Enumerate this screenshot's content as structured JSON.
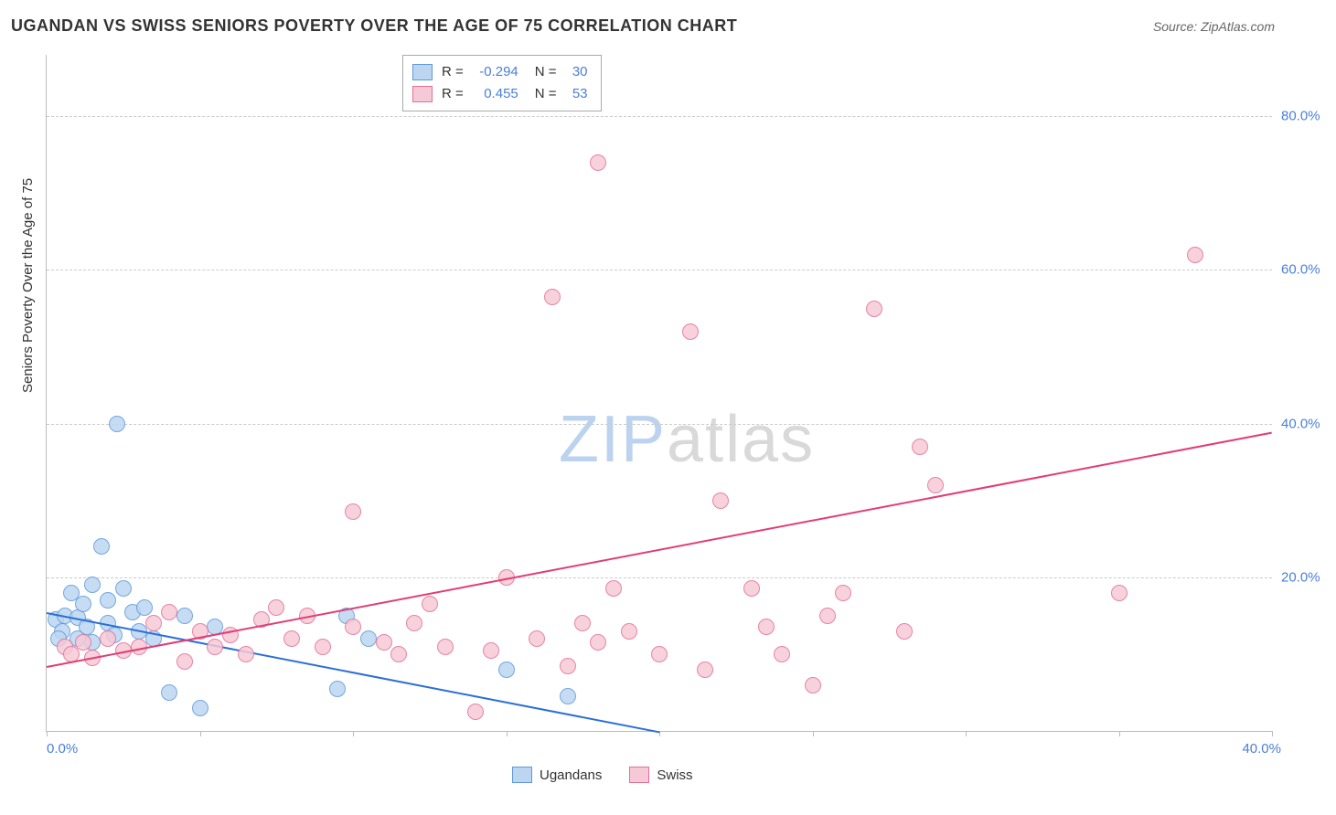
{
  "title": "UGANDAN VS SWISS SENIORS POVERTY OVER THE AGE OF 75 CORRELATION CHART",
  "source": "Source: ZipAtlas.com",
  "y_axis_title": "Seniors Poverty Over the Age of 75",
  "watermark": {
    "part1": "ZIP",
    "part2": "atlas"
  },
  "chart": {
    "type": "scatter",
    "background_color": "#ffffff",
    "grid_color": "#cccccc",
    "axis_color": "#bbbbbb",
    "tick_label_color": "#4a7fd8",
    "x": {
      "min": 0,
      "max": 40,
      "label_min": "0.0%",
      "label_max": "40.0%",
      "ticks": [
        0,
        5,
        10,
        15,
        20,
        25,
        30,
        35,
        40
      ]
    },
    "y": {
      "min": 0,
      "max": 88,
      "gridlines": [
        20,
        40,
        60,
        80
      ],
      "labels": [
        "20.0%",
        "40.0%",
        "60.0%",
        "80.0%"
      ]
    },
    "point_radius": 8,
    "series": [
      {
        "name": "Ugandans",
        "fill": "#bcd6f2",
        "stroke": "#5e98da",
        "r_value": "-0.294",
        "n_value": "30",
        "trend": {
          "x1": 0,
          "y1": 15.5,
          "x2": 20,
          "y2": 0,
          "color": "#2b6fd6"
        },
        "points": [
          [
            0.3,
            14.5
          ],
          [
            0.5,
            13.0
          ],
          [
            0.6,
            15.0
          ],
          [
            0.8,
            18.0
          ],
          [
            1.0,
            12.0
          ],
          [
            1.0,
            14.8
          ],
          [
            1.2,
            16.5
          ],
          [
            1.3,
            13.5
          ],
          [
            1.5,
            19.0
          ],
          [
            1.5,
            11.5
          ],
          [
            1.8,
            24.0
          ],
          [
            2.0,
            14.0
          ],
          [
            2.0,
            17.0
          ],
          [
            2.2,
            12.5
          ],
          [
            2.3,
            40.0
          ],
          [
            2.5,
            18.5
          ],
          [
            2.8,
            15.5
          ],
          [
            3.0,
            13.0
          ],
          [
            3.2,
            16.0
          ],
          [
            3.5,
            12.0
          ],
          [
            4.0,
            5.0
          ],
          [
            4.5,
            15.0
          ],
          [
            5.0,
            3.0
          ],
          [
            5.5,
            13.5
          ],
          [
            9.5,
            5.5
          ],
          [
            9.8,
            15.0
          ],
          [
            10.5,
            12.0
          ],
          [
            15.0,
            8.0
          ],
          [
            17.0,
            4.5
          ],
          [
            0.4,
            12.0
          ]
        ]
      },
      {
        "name": "Swiss",
        "fill": "#f6c9d6",
        "stroke": "#e36f96",
        "r_value": "0.455",
        "n_value": "53",
        "trend": {
          "x1": 0,
          "y1": 8.5,
          "x2": 40,
          "y2": 39,
          "color": "#e23d74"
        },
        "points": [
          [
            0.6,
            11.0
          ],
          [
            0.8,
            10.0
          ],
          [
            1.2,
            11.5
          ],
          [
            1.5,
            9.5
          ],
          [
            2.0,
            12.0
          ],
          [
            2.5,
            10.5
          ],
          [
            3.0,
            11.0
          ],
          [
            3.5,
            14.0
          ],
          [
            4.0,
            15.5
          ],
          [
            4.5,
            9.0
          ],
          [
            5.0,
            13.0
          ],
          [
            5.5,
            11.0
          ],
          [
            6.0,
            12.5
          ],
          [
            6.5,
            10.0
          ],
          [
            7.0,
            14.5
          ],
          [
            7.5,
            16.0
          ],
          [
            8.0,
            12.0
          ],
          [
            8.5,
            15.0
          ],
          [
            9.0,
            11.0
          ],
          [
            10.0,
            13.5
          ],
          [
            10.0,
            28.5
          ],
          [
            11.0,
            11.5
          ],
          [
            11.5,
            10.0
          ],
          [
            12.0,
            14.0
          ],
          [
            12.5,
            16.5
          ],
          [
            13.0,
            11.0
          ],
          [
            14.0,
            2.5
          ],
          [
            14.5,
            10.5
          ],
          [
            15.0,
            20.0
          ],
          [
            16.0,
            12.0
          ],
          [
            16.5,
            56.5
          ],
          [
            17.0,
            8.5
          ],
          [
            17.5,
            14.0
          ],
          [
            18.0,
            11.5
          ],
          [
            18.0,
            74.0
          ],
          [
            18.5,
            18.5
          ],
          [
            19.0,
            13.0
          ],
          [
            20.0,
            10.0
          ],
          [
            21.0,
            52.0
          ],
          [
            21.5,
            8.0
          ],
          [
            22.0,
            30.0
          ],
          [
            23.0,
            18.5
          ],
          [
            23.5,
            13.5
          ],
          [
            24.0,
            10.0
          ],
          [
            25.0,
            6.0
          ],
          [
            25.5,
            15.0
          ],
          [
            26.0,
            18.0
          ],
          [
            27.0,
            55.0
          ],
          [
            28.0,
            13.0
          ],
          [
            28.5,
            37.0
          ],
          [
            29.0,
            32.0
          ],
          [
            35.0,
            18.0
          ],
          [
            37.5,
            62.0
          ]
        ]
      }
    ]
  },
  "bottom_legend": [
    {
      "label": "Ugandans",
      "fill": "#bcd6f2",
      "stroke": "#5e98da"
    },
    {
      "label": "Swiss",
      "fill": "#f6c9d6",
      "stroke": "#e36f96"
    }
  ]
}
